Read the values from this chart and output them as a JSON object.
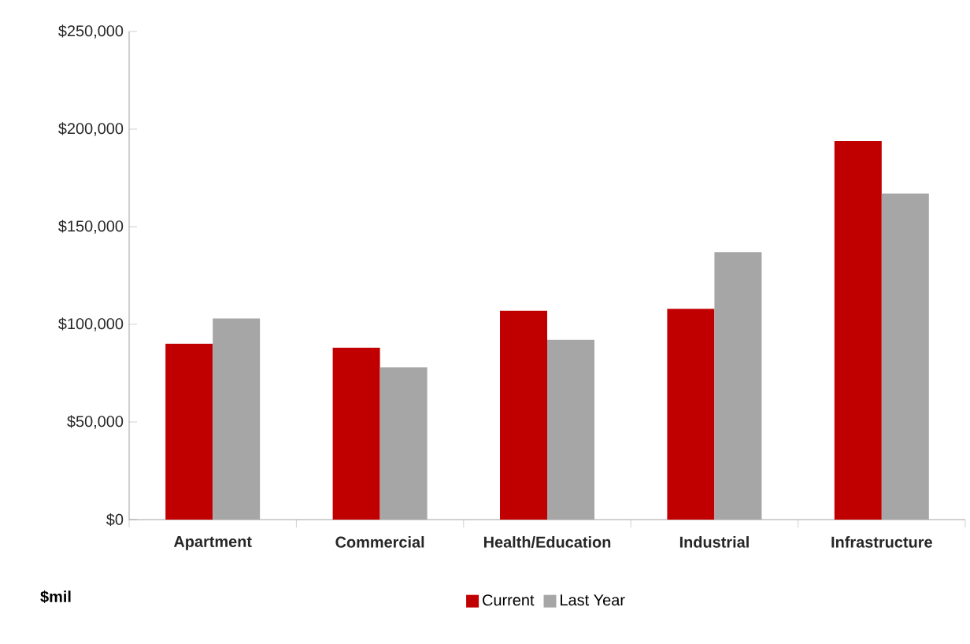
{
  "chart_data": {
    "type": "bar",
    "categories": [
      "Apartment",
      "Commercial",
      "Health/Education",
      "Industrial",
      "Infrastructure"
    ],
    "series": [
      {
        "name": "Current",
        "color": "#c00000",
        "values": [
          90000,
          88000,
          107000,
          108000,
          194000
        ]
      },
      {
        "name": "Last Year",
        "color": "#a6a6a6",
        "values": [
          103000,
          78000,
          92000,
          137000,
          167000
        ]
      }
    ],
    "ylim": [
      0,
      250000
    ],
    "yticks": [
      {
        "value": 0,
        "label": "$0"
      },
      {
        "value": 50000,
        "label": "$50,000"
      },
      {
        "value": 100000,
        "label": "$100,000"
      },
      {
        "value": 150000,
        "label": "$150,000"
      },
      {
        "value": 200000,
        "label": "$200,000"
      },
      {
        "value": 250000,
        "label": "$250,000"
      }
    ],
    "legend": "bottom",
    "annotations": [
      "$mil"
    ]
  }
}
